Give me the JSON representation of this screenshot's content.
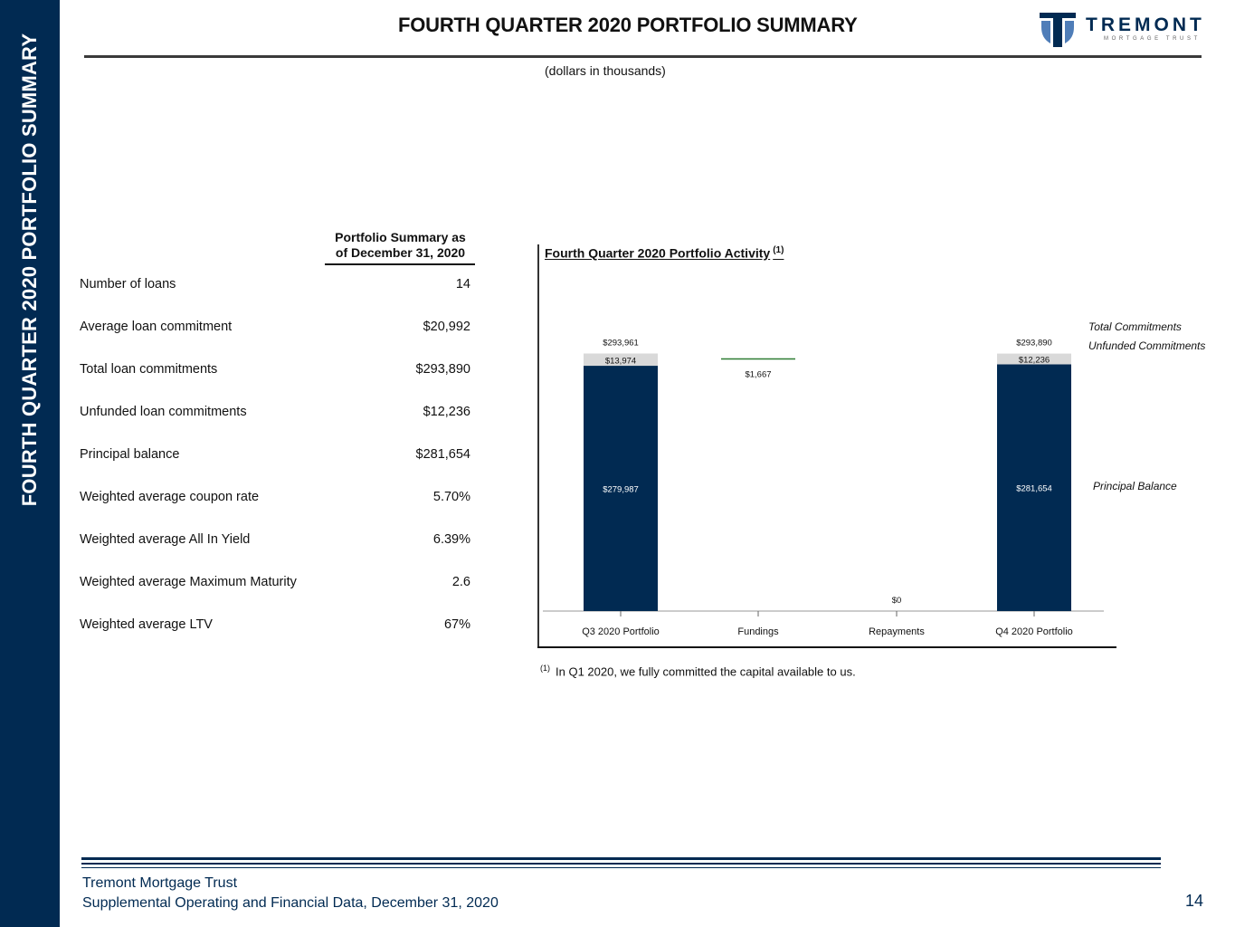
{
  "sidebar": {
    "label": "FOURTH QUARTER 2020 PORTFOLIO SUMMARY"
  },
  "header": {
    "title": "FOURTH QUARTER 2020 PORTFOLIO SUMMARY",
    "subtitle": "(dollars in thousands)"
  },
  "logo": {
    "name": "TREMONT",
    "tagline": "MORTGAGE TRUST"
  },
  "summary": {
    "header_line1": "Portfolio Summary as",
    "header_line2": "of December 31, 2020",
    "rows": [
      {
        "label": "Number of loans",
        "value": "14"
      },
      {
        "label": "Average loan commitment",
        "value": "$20,992"
      },
      {
        "label": "Total loan commitments",
        "value": "$293,890"
      },
      {
        "label": "Unfunded loan commitments",
        "value": "$12,236"
      },
      {
        "label": "Principal balance",
        "value": "$281,654"
      },
      {
        "label": "Weighted average coupon rate",
        "value": "5.70%"
      },
      {
        "label": "Weighted average All In Yield",
        "value": "6.39%"
      },
      {
        "label": "Weighted average Maximum Maturity",
        "value": "2.6"
      },
      {
        "label": "Weighted average LTV",
        "value": "67%"
      }
    ]
  },
  "chart": {
    "title": "Fourth Quarter 2020 Portfolio Activity",
    "title_sup": "(1)"
  },
  "chart_data": {
    "type": "bar",
    "title": "Fourth Quarter 2020 Portfolio Activity",
    "categories": [
      "Q3 2020 Portfolio",
      "Fundings",
      "Repayments",
      "Q4 2020 Portfolio"
    ],
    "series": [
      {
        "name": "Principal Balance",
        "values": [
          279987,
          1667,
          0,
          281654
        ],
        "labels": [
          "$279,987",
          "$1,667",
          "$0",
          "$281,654"
        ],
        "color": "#012a52"
      },
      {
        "name": "Unfunded Commitments",
        "values": [
          13974,
          null,
          null,
          12236
        ],
        "labels": [
          "$13,974",
          "",
          "",
          "$12,236"
        ],
        "color": "#d9d9d9"
      }
    ],
    "totals": [
      293961,
      null,
      null,
      293890
    ],
    "total_labels": [
      "$293,961",
      "",
      "",
      "$293,890"
    ],
    "funding_color": "#2e7d32",
    "legend": [
      "Total Commitments",
      "Unfunded Commitments",
      "Principal Balance"
    ],
    "ylim": [
      0,
      310000
    ],
    "xlabel": "",
    "ylabel": ""
  },
  "footnote": {
    "marker": "(1)",
    "text": "In Q1 2020, we fully committed the capital available to us."
  },
  "footer": {
    "line1": "Tremont Mortgage Trust",
    "line2": "Supplemental Operating and Financial Data, December 31, 2020",
    "page": "14"
  }
}
